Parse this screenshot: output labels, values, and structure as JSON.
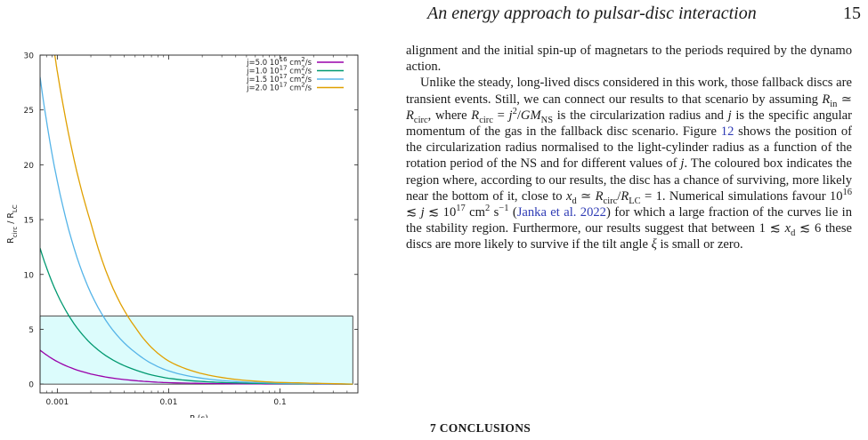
{
  "header": {
    "running_title": "An energy approach to pulsar-disc interaction",
    "page_number": "15"
  },
  "body": {
    "p1": "alignment and the initial spin-up of magnetars to the periods required by the dynamo action.",
    "p2_a": "Unlike the steady, long-lived discs considered in this work, those fallback discs are transient events. Still, we can connect our results to that scenario by assuming ",
    "p2_b": ", where ",
    "p2_c": " is the circularization radius and ",
    "p2_d": " is the specific angular momentum of the gas in the fallback disc scenario. Figure ",
    "figure_ref": "12",
    "p2_e": " shows the position of the circularization radius normalised to the light-cylinder radius as a function of the rotation period of the NS and for different values of ",
    "p2_f": ". The coloured box indicates the region where, according to our results, the disc has a chance of surviving, more likely near the bottom of it, close to ",
    "p2_g": ". Numerical simulations favour ",
    "p2_h": " (",
    "citation": "Janka et al. 2022",
    "p2_i": ") for which a large fraction of the curves lie in the stability region. Furthermore, our results suggest that between ",
    "p2_j": " these discs are more likely to survive if the tilt angle ",
    "p2_k": " is small or zero."
  },
  "section_heading": "7 CONCLUSIONS",
  "chart_data": {
    "type": "line",
    "xlabel": "P (s)",
    "ylabel": "R_circ / R_LC",
    "x_scale": "log",
    "xlim": [
      0.0007,
      0.5
    ],
    "ylim": [
      -0.8,
      30
    ],
    "x_ticks": [
      0.001,
      0.01,
      0.1
    ],
    "x_tick_labels": [
      "0.001",
      "0.01",
      "0.1"
    ],
    "y_ticks": [
      0,
      5,
      10,
      15,
      20,
      25,
      30
    ],
    "y_tick_labels": [
      "0",
      "5",
      "10",
      "15",
      "20",
      "25",
      "30"
    ],
    "legend_position": "top-right",
    "grid": false,
    "stability_box": {
      "x_range": [
        0.0007,
        0.45
      ],
      "y_range": [
        0,
        6.2
      ],
      "fill": "#dcfcfc"
    },
    "series": [
      {
        "name": "j=5.0 10^16 cm^2/s",
        "color": "#9900aa",
        "points": [
          [
            0.0007,
            3.1
          ],
          [
            0.001,
            2.05
          ],
          [
            0.002,
            0.93
          ],
          [
            0.005,
            0.32
          ],
          [
            0.01,
            0.13
          ],
          [
            0.03,
            0.04
          ],
          [
            0.1,
            0.01
          ],
          [
            0.45,
            0.0
          ]
        ]
      },
      {
        "name": "j=1.0 10^17 cm^2/s",
        "color": "#009970",
        "points": [
          [
            0.0007,
            12.4
          ],
          [
            0.001,
            8.2
          ],
          [
            0.002,
            3.7
          ],
          [
            0.005,
            1.3
          ],
          [
            0.01,
            0.53
          ],
          [
            0.03,
            0.15
          ],
          [
            0.1,
            0.04
          ],
          [
            0.45,
            0.0
          ]
        ]
      },
      {
        "name": "j=1.5 10^17 cm^2/s",
        "color": "#55b4e8",
        "points": [
          [
            0.0007,
            28.0
          ],
          [
            0.001,
            18.5
          ],
          [
            0.002,
            8.3
          ],
          [
            0.005,
            2.9
          ],
          [
            0.01,
            1.2
          ],
          [
            0.03,
            0.33
          ],
          [
            0.1,
            0.08
          ],
          [
            0.45,
            0.0
          ]
        ]
      },
      {
        "name": "j=2.0 10^17 cm^2/s",
        "color": "#e0a000",
        "points": [
          [
            0.00095,
            30.0
          ],
          [
            0.001,
            28.5
          ],
          [
            0.002,
            14.7
          ],
          [
            0.005,
            5.2
          ],
          [
            0.01,
            2.1
          ],
          [
            0.03,
            0.6
          ],
          [
            0.1,
            0.15
          ],
          [
            0.45,
            0.0
          ]
        ]
      }
    ]
  }
}
